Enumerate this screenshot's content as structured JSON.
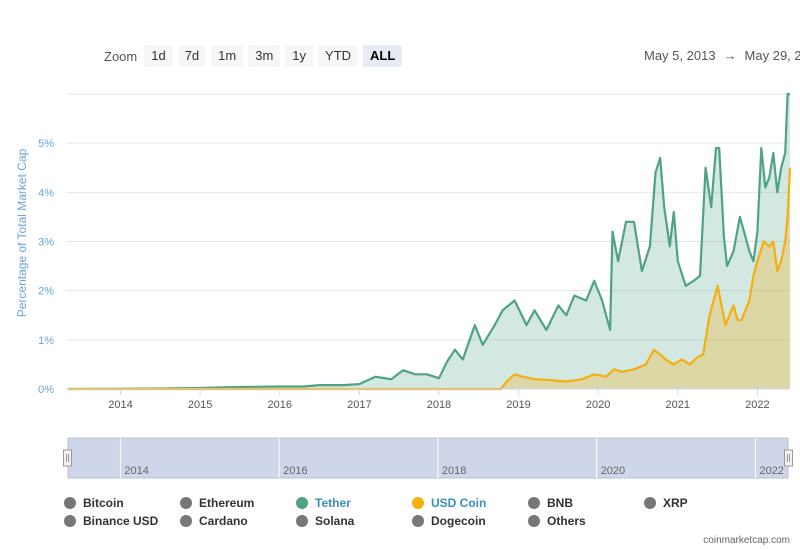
{
  "zoom": {
    "label": "Zoom",
    "buttons": [
      "1d",
      "7d",
      "1m",
      "3m",
      "1y",
      "YTD",
      "ALL"
    ],
    "active": "ALL"
  },
  "date_range": {
    "from": "May 5, 2013",
    "arrow": "→",
    "to": "May 29, 2"
  },
  "credit": "coinmarketcap.com",
  "colors": {
    "tether": "#4fa383",
    "usd_coin": "#f5ae0f",
    "navigator": "#cfd6ea",
    "gridline": "#e6e6e6",
    "inactive_legend": "#777777"
  },
  "legend": {
    "row1": [
      {
        "label": "Bitcoin",
        "color": "#777777",
        "active": false
      },
      {
        "label": "Ethereum",
        "color": "#777777",
        "active": false
      },
      {
        "label": "Tether",
        "color": "#4fa383",
        "active": true
      },
      {
        "label": "USD Coin",
        "color": "#f5ae0f",
        "active": true
      },
      {
        "label": "BNB",
        "color": "#777777",
        "active": false
      },
      {
        "label": "XRP",
        "color": "#777777",
        "active": false
      }
    ],
    "row2": [
      {
        "label": "Binance USD",
        "color": "#777777",
        "active": false
      },
      {
        "label": "Cardano",
        "color": "#777777",
        "active": false
      },
      {
        "label": "Solana",
        "color": "#777777",
        "active": false
      },
      {
        "label": "Dogecoin",
        "color": "#777777",
        "active": false
      },
      {
        "label": "Others",
        "color": "#777777",
        "active": false
      }
    ]
  },
  "chart_data": {
    "type": "area",
    "title": "",
    "ylabel": "Percentage of Total Market Cap",
    "xlim": [
      2013.34,
      2022.41
    ],
    "ylim": [
      0,
      6
    ],
    "yticks": [
      0,
      1,
      2,
      3,
      4,
      5
    ],
    "ytick_labels": [
      "0%",
      "1%",
      "2%",
      "3%",
      "4%",
      "5%"
    ],
    "xticks": [
      2014,
      2015,
      2016,
      2017,
      2018,
      2019,
      2020,
      2021,
      2022
    ],
    "navigator_ticks": [
      "2014",
      "2016",
      "2018",
      "2020",
      "2022"
    ],
    "grid": true,
    "series": [
      {
        "name": "Tether",
        "x": [
          2013.34,
          2014.5,
          2015.0,
          2015.5,
          2016.0,
          2016.3,
          2016.5,
          2016.8,
          2017.0,
          2017.2,
          2017.4,
          2017.55,
          2017.7,
          2017.85,
          2018.0,
          2018.1,
          2018.2,
          2018.3,
          2018.45,
          2018.55,
          2018.7,
          2018.8,
          2018.95,
          2019.1,
          2019.2,
          2019.35,
          2019.5,
          2019.6,
          2019.7,
          2019.85,
          2019.95,
          2020.05,
          2020.15,
          2020.18,
          2020.25,
          2020.35,
          2020.45,
          2020.55,
          2020.65,
          2020.72,
          2020.78,
          2020.83,
          2020.9,
          2020.95,
          2021.0,
          2021.1,
          2021.2,
          2021.28,
          2021.35,
          2021.42,
          2021.48,
          2021.52,
          2021.58,
          2021.62,
          2021.7,
          2021.78,
          2021.85,
          2021.9,
          2021.95,
          2022.0,
          2022.05,
          2022.1,
          2022.15,
          2022.2,
          2022.25,
          2022.3,
          2022.35,
          2022.38,
          2022.41
        ],
        "values": [
          0.0,
          0.01,
          0.02,
          0.04,
          0.05,
          0.05,
          0.08,
          0.08,
          0.1,
          0.25,
          0.2,
          0.38,
          0.3,
          0.3,
          0.22,
          0.55,
          0.8,
          0.6,
          1.3,
          0.9,
          1.3,
          1.6,
          1.8,
          1.3,
          1.6,
          1.2,
          1.7,
          1.5,
          1.9,
          1.8,
          2.2,
          1.8,
          1.2,
          3.2,
          2.6,
          3.4,
          3.4,
          2.4,
          2.9,
          4.4,
          4.7,
          3.7,
          2.9,
          3.6,
          2.6,
          2.1,
          2.2,
          2.3,
          4.5,
          3.7,
          4.9,
          4.9,
          3.1,
          2.5,
          2.8,
          3.5,
          3.1,
          2.8,
          2.6,
          3.2,
          4.9,
          4.1,
          4.3,
          4.8,
          4.0,
          4.5,
          4.8,
          6.0,
          6.0
        ]
      },
      {
        "name": "USD Coin",
        "x": [
          2013.34,
          2018.78,
          2018.85,
          2018.95,
          2019.05,
          2019.2,
          2019.4,
          2019.6,
          2019.8,
          2019.95,
          2020.1,
          2020.2,
          2020.3,
          2020.45,
          2020.6,
          2020.7,
          2020.78,
          2020.85,
          2020.95,
          2021.05,
          2021.15,
          2021.25,
          2021.32,
          2021.4,
          2021.45,
          2021.5,
          2021.55,
          2021.6,
          2021.65,
          2021.7,
          2021.75,
          2021.8,
          2021.9,
          2021.95,
          2022.0,
          2022.08,
          2022.15,
          2022.2,
          2022.25,
          2022.3,
          2022.35,
          2022.38,
          2022.41
        ],
        "values": [
          0.0,
          0.0,
          0.15,
          0.3,
          0.25,
          0.2,
          0.18,
          0.15,
          0.2,
          0.3,
          0.25,
          0.4,
          0.35,
          0.4,
          0.5,
          0.8,
          0.7,
          0.6,
          0.5,
          0.6,
          0.5,
          0.65,
          0.7,
          1.5,
          1.8,
          2.1,
          1.7,
          1.3,
          1.5,
          1.7,
          1.4,
          1.4,
          1.8,
          2.3,
          2.6,
          3.0,
          2.9,
          3.0,
          2.4,
          2.6,
          3.0,
          3.5,
          4.5
        ]
      }
    ]
  }
}
